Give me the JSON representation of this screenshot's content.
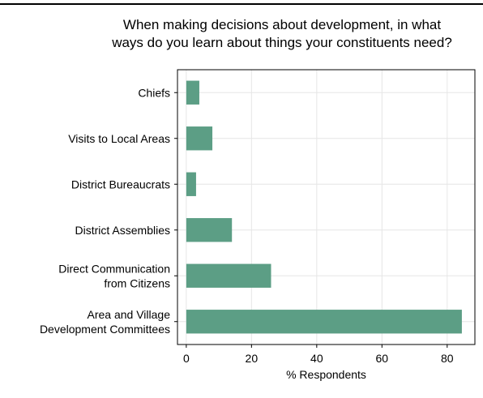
{
  "chart_data": {
    "type": "bar",
    "orientation": "horizontal",
    "title": "When making decisions about development, in what\nways do you learn about things your constituents need?",
    "xlabel": "% Respondents",
    "ylabel": "",
    "categories": [
      "Chiefs",
      "Visits to Local Areas",
      "District Bureaucrats",
      "District Assemblies",
      "Direct Communication\nfrom Citizens",
      "Area and Village\nDevelopment Committees"
    ],
    "values": [
      4,
      8,
      3,
      14,
      26,
      84.5
    ],
    "xlim": [
      -2.7,
      88.5
    ],
    "xticks": [
      0,
      20,
      40,
      60,
      80
    ],
    "grid": true,
    "bar_color": "#5c9e85",
    "grid_color": "#e6e6e6"
  }
}
